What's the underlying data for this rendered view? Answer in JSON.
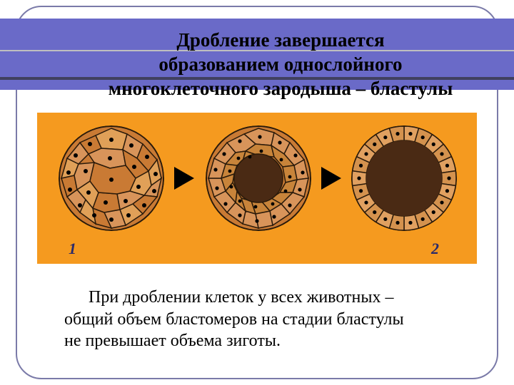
{
  "title": {
    "line1": "Дробление завершается",
    "line2": "образованием однослойного",
    "line3": "многоклеточного зародыша – бластулы"
  },
  "diagram": {
    "background_color": "#f59a1f",
    "num_label_1": "1",
    "num_label_2": "2",
    "arrow_color": "#000000",
    "stages": [
      {
        "type": "morula",
        "outer_fill": "#c97a34",
        "cell_border": "#2a1a0a",
        "cell_fill_light": "#e8a85a",
        "cell_fill_dark": "#b8742e",
        "nucleus_color": "#000000"
      },
      {
        "type": "early-blastula",
        "outer_fill": "#c97a34",
        "cavity_fill": "#4a2a14",
        "cell_fill": "#d8945a",
        "cell_border": "#2a1a0a",
        "nucleus_color": "#000000"
      },
      {
        "type": "blastula",
        "cavity_fill": "#4a2a14",
        "cell_fill": "#e0a060",
        "cell_border": "#2a1a0a",
        "nucleus_color": "#000000"
      }
    ]
  },
  "bottom_text": {
    "line1": "При дроблении клеток у всех животных –",
    "line2": "общий объем бластомеров на стадии бластулы",
    "line3": "не превышает объема зиготы."
  },
  "colors": {
    "header_band": "#6a6ac8",
    "frame_border": "#7a7aa8",
    "header_underline": "#404060"
  }
}
